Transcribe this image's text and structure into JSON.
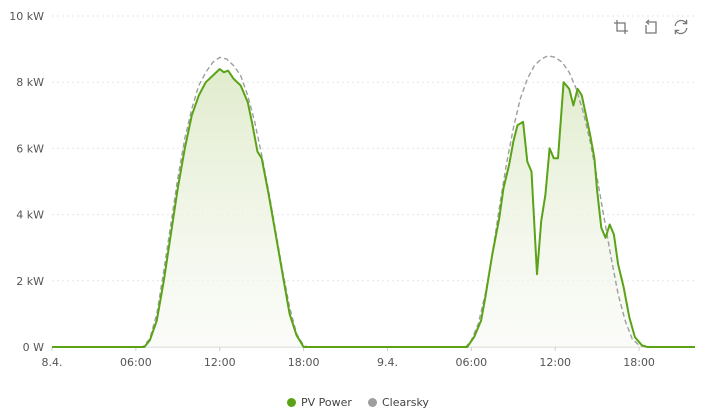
{
  "toolbar": {
    "icons": [
      "crop-zoom-icon",
      "undo-zoom-icon",
      "reset-icon"
    ]
  },
  "colors": {
    "pv": "#5aa317",
    "clearsky": "#9e9e9e",
    "area_top": "#e2edcf",
    "grid": "#e6e6e6"
  },
  "chart_data": {
    "type": "area",
    "title": "",
    "xlabel": "",
    "ylabel": "",
    "x_unit": "hours since 8.4. 00:00",
    "x_ticks": [
      {
        "x": 0,
        "label": "8.4."
      },
      {
        "x": 6,
        "label": "06:00"
      },
      {
        "x": 12,
        "label": "12:00"
      },
      {
        "x": 18,
        "label": "18:00"
      },
      {
        "x": 24,
        "label": "9.4."
      },
      {
        "x": 30,
        "label": "06:00"
      },
      {
        "x": 36,
        "label": "12:00"
      },
      {
        "x": 42,
        "label": "18:00"
      }
    ],
    "xlim": [
      0,
      46
    ],
    "ylim": [
      0,
      10
    ],
    "y_ticks": [
      {
        "y": 0,
        "label": "0 W"
      },
      {
        "y": 2,
        "label": "2 kW"
      },
      {
        "y": 4,
        "label": "4 kW"
      },
      {
        "y": 6,
        "label": "6 kW"
      },
      {
        "y": 8,
        "label": "8 kW"
      },
      {
        "y": 10,
        "label": "10 kW"
      }
    ],
    "grid": "horizontal dashed",
    "legend_position": "bottom-center",
    "series": [
      {
        "name": "PV Power",
        "style": "solid",
        "filled": true,
        "points": [
          [
            0,
            0
          ],
          [
            6.6,
            0
          ],
          [
            7,
            0.2
          ],
          [
            7.5,
            0.8
          ],
          [
            8,
            2.0
          ],
          [
            8.5,
            3.4
          ],
          [
            9,
            4.8
          ],
          [
            9.5,
            6.0
          ],
          [
            10,
            7.0
          ],
          [
            10.5,
            7.6
          ],
          [
            11,
            8.0
          ],
          [
            11.5,
            8.2
          ],
          [
            12,
            8.4
          ],
          [
            12.3,
            8.3
          ],
          [
            12.6,
            8.35
          ],
          [
            13,
            8.1
          ],
          [
            13.5,
            7.9
          ],
          [
            14,
            7.4
          ],
          [
            14.3,
            6.8
          ],
          [
            14.7,
            5.9
          ],
          [
            15,
            5.7
          ],
          [
            15.5,
            4.6
          ],
          [
            16,
            3.4
          ],
          [
            16.5,
            2.2
          ],
          [
            17,
            1.0
          ],
          [
            17.5,
            0.35
          ],
          [
            18,
            0
          ],
          [
            29.7,
            0
          ],
          [
            30.2,
            0.3
          ],
          [
            30.7,
            0.8
          ],
          [
            31,
            1.5
          ],
          [
            31.5,
            2.8
          ],
          [
            32,
            3.9
          ],
          [
            32.3,
            4.8
          ],
          [
            32.7,
            5.5
          ],
          [
            33,
            6.2
          ],
          [
            33.3,
            6.7
          ],
          [
            33.7,
            6.8
          ],
          [
            34,
            5.6
          ],
          [
            34.3,
            5.3
          ],
          [
            34.7,
            2.2
          ],
          [
            35,
            3.8
          ],
          [
            35.3,
            4.6
          ],
          [
            35.6,
            6.0
          ],
          [
            35.9,
            5.7
          ],
          [
            36.2,
            5.7
          ],
          [
            36.6,
            8.0
          ],
          [
            37,
            7.8
          ],
          [
            37.3,
            7.3
          ],
          [
            37.6,
            7.8
          ],
          [
            37.9,
            7.6
          ],
          [
            38.2,
            7.0
          ],
          [
            38.5,
            6.4
          ],
          [
            38.8,
            5.7
          ],
          [
            39,
            4.7
          ],
          [
            39.3,
            3.6
          ],
          [
            39.6,
            3.3
          ],
          [
            39.9,
            3.7
          ],
          [
            40.2,
            3.4
          ],
          [
            40.5,
            2.5
          ],
          [
            40.9,
            1.8
          ],
          [
            41.3,
            0.9
          ],
          [
            41.7,
            0.3
          ],
          [
            42.2,
            0.05
          ],
          [
            42.6,
            0
          ],
          [
            46,
            0
          ]
        ]
      },
      {
        "name": "Clearsky",
        "style": "dashed",
        "filled": false,
        "points": [
          [
            0,
            0
          ],
          [
            6.5,
            0
          ],
          [
            7,
            0.25
          ],
          [
            7.5,
            1.0
          ],
          [
            8,
            2.3
          ],
          [
            8.5,
            3.7
          ],
          [
            9,
            5.1
          ],
          [
            9.5,
            6.3
          ],
          [
            10,
            7.2
          ],
          [
            10.5,
            7.9
          ],
          [
            11,
            8.3
          ],
          [
            11.5,
            8.6
          ],
          [
            12,
            8.75
          ],
          [
            12.5,
            8.7
          ],
          [
            13,
            8.5
          ],
          [
            13.5,
            8.2
          ],
          [
            14,
            7.6
          ],
          [
            14.5,
            6.8
          ],
          [
            15,
            5.8
          ],
          [
            15.5,
            4.7
          ],
          [
            16,
            3.5
          ],
          [
            16.5,
            2.3
          ],
          [
            17,
            1.2
          ],
          [
            17.5,
            0.4
          ],
          [
            18,
            0.05
          ],
          [
            18.3,
            0
          ],
          [
            29.6,
            0
          ],
          [
            30,
            0.2
          ],
          [
            30.5,
            0.7
          ],
          [
            31,
            1.6
          ],
          [
            31.5,
            2.8
          ],
          [
            32,
            4.2
          ],
          [
            32.5,
            5.5
          ],
          [
            33,
            6.6
          ],
          [
            33.5,
            7.5
          ],
          [
            34,
            8.1
          ],
          [
            34.5,
            8.5
          ],
          [
            35,
            8.7
          ],
          [
            35.5,
            8.8
          ],
          [
            36,
            8.75
          ],
          [
            36.5,
            8.6
          ],
          [
            37,
            8.3
          ],
          [
            37.5,
            7.8
          ],
          [
            38,
            7.1
          ],
          [
            38.5,
            6.2
          ],
          [
            39,
            5.1
          ],
          [
            39.5,
            3.9
          ],
          [
            40,
            2.7
          ],
          [
            40.5,
            1.6
          ],
          [
            41,
            0.8
          ],
          [
            41.5,
            0.25
          ],
          [
            42,
            0.05
          ],
          [
            42.5,
            0
          ],
          [
            46,
            0
          ]
        ]
      }
    ]
  }
}
